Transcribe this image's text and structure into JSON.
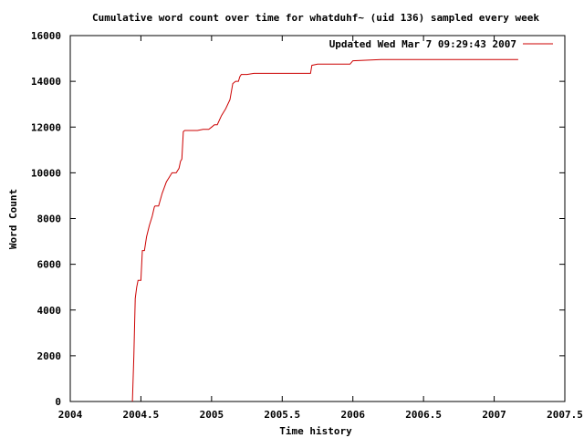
{
  "chart_data": {
    "type": "line",
    "title": "Cumulative word count over time for whatduhf~ (uid 136) sampled every week",
    "xlabel": "Time history",
    "ylabel": "Word Count",
    "xlim": [
      2004,
      2007.5
    ],
    "ylim": [
      0,
      16000
    ],
    "x_ticks": [
      {
        "value": 2004,
        "label": "2004"
      },
      {
        "value": 2004.5,
        "label": "2004.5"
      },
      {
        "value": 2005,
        "label": "2005"
      },
      {
        "value": 2005.5,
        "label": "2005.5"
      },
      {
        "value": 2006,
        "label": "2006"
      },
      {
        "value": 2006.5,
        "label": "2006.5"
      },
      {
        "value": 2007,
        "label": "2007"
      },
      {
        "value": 2007.5,
        "label": "2007.5"
      }
    ],
    "y_ticks": [
      {
        "value": 0,
        "label": "0"
      },
      {
        "value": 2000,
        "label": "2000"
      },
      {
        "value": 4000,
        "label": "4000"
      },
      {
        "value": 6000,
        "label": "6000"
      },
      {
        "value": 8000,
        "label": "8000"
      },
      {
        "value": 10000,
        "label": "10000"
      },
      {
        "value": 12000,
        "label": "12000"
      },
      {
        "value": 14000,
        "label": "14000"
      },
      {
        "value": 16000,
        "label": "16000"
      }
    ],
    "grid": false,
    "legend_position": "top-right",
    "series": [
      {
        "name": "Updated Wed Mar  7 09:29:43 2007",
        "color": "#cc0000",
        "points": [
          [
            2004.44,
            0
          ],
          [
            2004.45,
            2000
          ],
          [
            2004.46,
            4500
          ],
          [
            2004.47,
            5000
          ],
          [
            2004.48,
            5300
          ],
          [
            2004.49,
            5300
          ],
          [
            2004.5,
            5300
          ],
          [
            2004.51,
            6600
          ],
          [
            2004.525,
            6600
          ],
          [
            2004.54,
            7200
          ],
          [
            2004.56,
            7700
          ],
          [
            2004.58,
            8100
          ],
          [
            2004.595,
            8500
          ],
          [
            2004.6,
            8550
          ],
          [
            2004.625,
            8550
          ],
          [
            2004.65,
            9100
          ],
          [
            2004.68,
            9600
          ],
          [
            2004.7,
            9800
          ],
          [
            2004.72,
            10000
          ],
          [
            2004.75,
            10000
          ],
          [
            2004.77,
            10200
          ],
          [
            2004.78,
            10500
          ],
          [
            2004.79,
            10600
          ],
          [
            2004.8,
            11800
          ],
          [
            2004.81,
            11850
          ],
          [
            2004.9,
            11850
          ],
          [
            2004.94,
            11900
          ],
          [
            2004.98,
            11900
          ],
          [
            2005.0,
            12000
          ],
          [
            2005.02,
            12100
          ],
          [
            2005.04,
            12100
          ],
          [
            2005.07,
            12500
          ],
          [
            2005.1,
            12800
          ],
          [
            2005.13,
            13200
          ],
          [
            2005.15,
            13900
          ],
          [
            2005.17,
            14000
          ],
          [
            2005.19,
            14000
          ],
          [
            2005.2,
            14200
          ],
          [
            2005.21,
            14300
          ],
          [
            2005.25,
            14300
          ],
          [
            2005.3,
            14350
          ],
          [
            2005.5,
            14350
          ],
          [
            2005.7,
            14350
          ],
          [
            2005.71,
            14700
          ],
          [
            2005.75,
            14750
          ],
          [
            2005.98,
            14750
          ],
          [
            2006.0,
            14900
          ],
          [
            2006.2,
            14950
          ],
          [
            2006.5,
            14950
          ],
          [
            2006.8,
            14950
          ],
          [
            2007.17,
            14950
          ]
        ]
      }
    ]
  }
}
